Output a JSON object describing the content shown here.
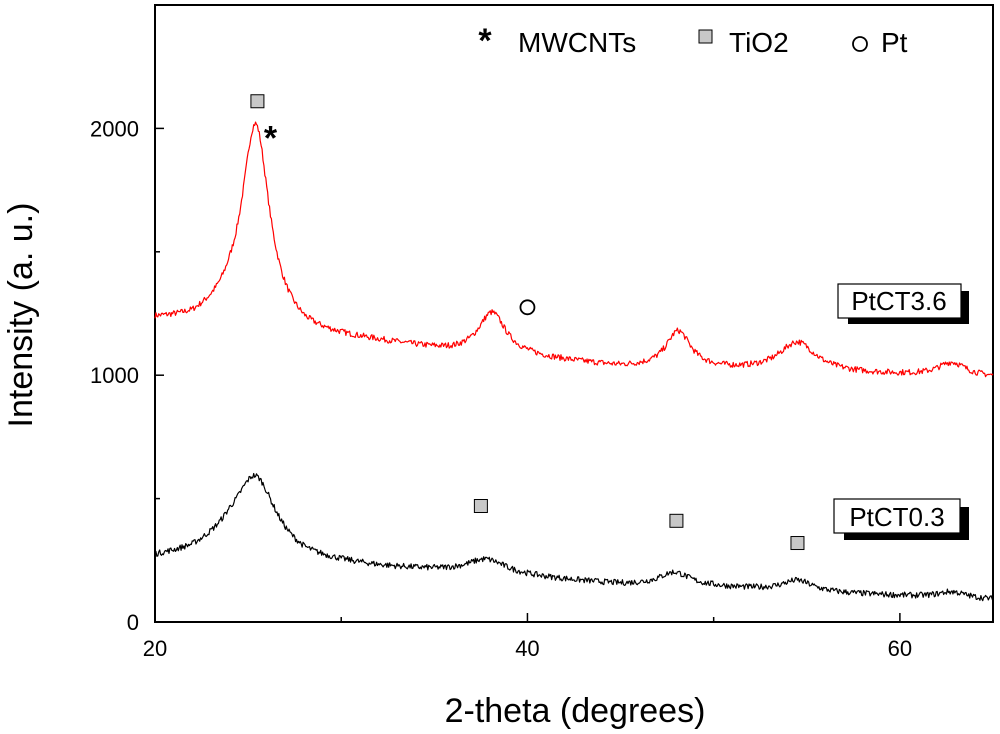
{
  "chart_data": {
    "type": "line",
    "xlabel": "2-theta  (degrees)",
    "ylabel": "Intensity  (a. u.)",
    "xlim": [
      20,
      65
    ],
    "ylim": [
      0,
      2500
    ],
    "xticks": [
      20,
      40,
      60
    ],
    "xtick_labels": [
      "20",
      "40",
      "60"
    ],
    "yticks": [
      0,
      1000,
      2000
    ],
    "ytick_labels": [
      "0",
      "1000",
      "2000"
    ],
    "colors": {
      "top": "#ff0000",
      "bottom": "#000000",
      "marker_fill": "#c8c8c8"
    },
    "series": [
      {
        "name": "PtCT3.6",
        "color": "#ff0000",
        "baseline": [
          [
            20,
            1220
          ],
          [
            22,
            1215
          ],
          [
            24,
            1250
          ],
          [
            28,
            1160
          ],
          [
            32,
            1130
          ],
          [
            36,
            1090
          ],
          [
            40,
            1070
          ],
          [
            45,
            1030
          ],
          [
            50,
            1020
          ],
          [
            55,
            1010
          ],
          [
            60,
            1000
          ],
          [
            65,
            990
          ]
        ],
        "peaks": [
          {
            "center": 25.4,
            "height": 800,
            "width": 0.9
          },
          {
            "center": 38.1,
            "height": 170,
            "width": 0.9
          },
          {
            "center": 48.1,
            "height": 150,
            "width": 0.8
          },
          {
            "center": 54.5,
            "height": 120,
            "width": 1.2
          },
          {
            "center": 62.8,
            "height": 55,
            "width": 0.9
          }
        ],
        "noise": 12
      },
      {
        "name": "PtCT0.3",
        "color": "#000000",
        "baseline": [
          [
            20,
            260
          ],
          [
            22,
            280
          ],
          [
            24,
            330
          ],
          [
            28,
            250
          ],
          [
            32,
            220
          ],
          [
            36,
            200
          ],
          [
            40,
            180
          ],
          [
            45,
            150
          ],
          [
            50,
            140
          ],
          [
            55,
            120
          ],
          [
            60,
            105
          ],
          [
            65,
            90
          ]
        ],
        "peaks": [
          {
            "center": 25.4,
            "height": 290,
            "width": 1.3
          },
          {
            "center": 37.8,
            "height": 60,
            "width": 1.3
          },
          {
            "center": 47.9,
            "height": 55,
            "width": 1.0
          },
          {
            "center": 54.5,
            "height": 45,
            "width": 1.0
          },
          {
            "center": 62.8,
            "height": 25,
            "width": 0.9
          }
        ],
        "noise": 12
      }
    ],
    "legend": [
      {
        "symbol": "*",
        "label": "MWCNTs"
      },
      {
        "symbol": "square",
        "label": "TiO2"
      },
      {
        "symbol": "O",
        "label": "Pt"
      }
    ],
    "series_labels": [
      {
        "text": "PtCT3.6",
        "x": 53.5,
        "y": 1310
      },
      {
        "text": "PtCT0.3",
        "x": 53.5,
        "y": 430
      }
    ],
    "annotations": [
      {
        "symbol": "square",
        "x": 25.5,
        "y": 2110
      },
      {
        "symbol": "*",
        "x": 26.2,
        "y": 1980
      },
      {
        "symbol": "O",
        "x": 40.0,
        "y": 1275
      },
      {
        "symbol": "square",
        "x": 37.5,
        "y": 470
      },
      {
        "symbol": "square",
        "x": 48.0,
        "y": 410
      },
      {
        "symbol": "square",
        "x": 54.5,
        "y": 320
      }
    ]
  }
}
